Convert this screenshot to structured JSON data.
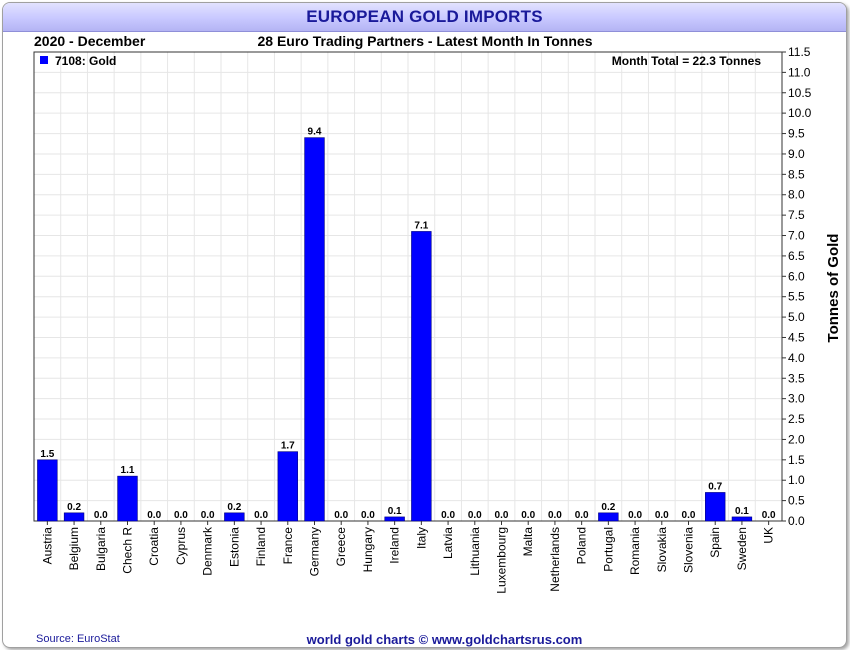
{
  "title": "EUROPEAN GOLD IMPORTS",
  "period": "2020 - December",
  "subtitle": "28 Euro Trading Partners - Latest Month In Tonnes",
  "legend_label": "7108: Gold",
  "month_total": "Month Total = 22.3 Tonnes",
  "source": "Source: EuroStat",
  "credit": "world gold charts © www.goldchartsrus.com",
  "colors": {
    "bar": "#0000ff",
    "title": "#1a1a9a",
    "grid": "#e6e6e6"
  },
  "chart_data": {
    "type": "bar",
    "title": "EUROPEAN GOLD IMPORTS",
    "ylabel": "Tonnes of Gold",
    "xlabel": "",
    "ylim": [
      0,
      11.5
    ],
    "ytick_step": 0.5,
    "grid": true,
    "legend_placement": "top-left",
    "categories": [
      "Austria",
      "Belgium",
      "Bulgaria",
      "Chech R",
      "Croatia",
      "Cyprus",
      "Denmark",
      "Estonia",
      "Finland",
      "France",
      "Germany",
      "Greece",
      "Hungary",
      "Ireland",
      "Italy",
      "Latvia",
      "Lithuania",
      "Luxembourg",
      "Malta",
      "Netherlands",
      "Poland",
      "Portugal",
      "Romania",
      "Slovakia",
      "Slovenia",
      "Spain",
      "Sweden",
      "UK"
    ],
    "series": [
      {
        "name": "7108: Gold",
        "values": [
          1.5,
          0.2,
          0.0,
          1.1,
          0.0,
          0.0,
          0.0,
          0.2,
          0.0,
          1.7,
          9.4,
          0.0,
          0.0,
          0.1,
          7.1,
          0.0,
          0.0,
          0.0,
          0.0,
          0.0,
          0.0,
          0.2,
          0.0,
          0.0,
          0.0,
          0.7,
          0.1,
          0.0
        ],
        "labels": [
          "1.5",
          "0.2",
          "0.0",
          "1.1",
          "0.0",
          "0.0",
          "0.0",
          "0.2",
          "0.0",
          "1.7",
          "9.4",
          "0.0",
          "0.0",
          "0.1",
          "7.1",
          "0.0",
          "0.0",
          "0.0",
          "0.0",
          "0.0",
          "0.0",
          "0.2",
          "0.0",
          "0.0",
          "0.0",
          "0.7",
          "0.1",
          "0.0"
        ]
      }
    ]
  }
}
